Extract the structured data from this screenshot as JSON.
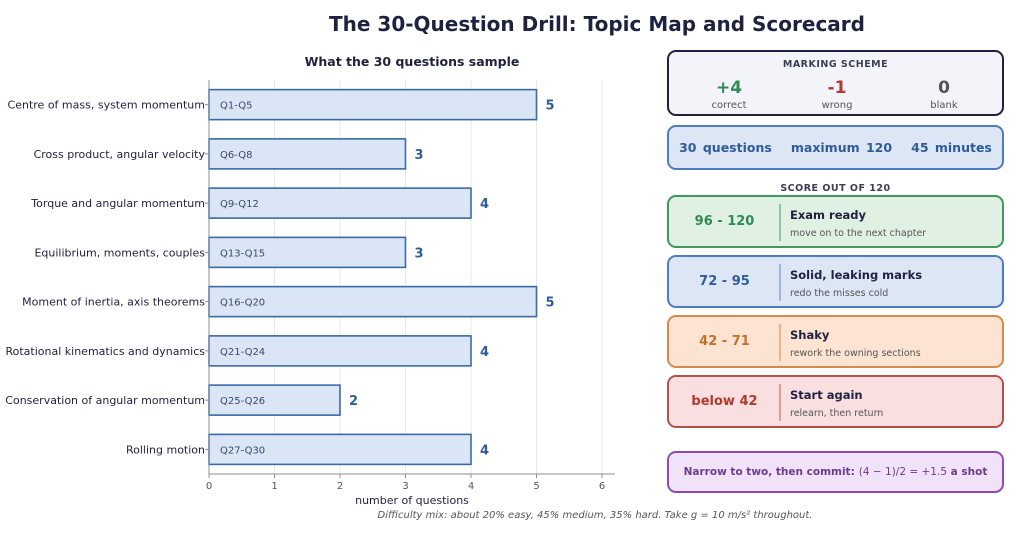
{
  "title": "The 30-Question Drill: Topic Map and Scorecard",
  "chart_data": {
    "type": "bar",
    "orientation": "horizontal",
    "title": "What the 30 questions sample",
    "xlabel": "number of questions",
    "ylabel": "",
    "xlim": [
      0,
      6.2
    ],
    "xticks": [
      0,
      1,
      2,
      3,
      4,
      5,
      6
    ],
    "grid": "vertical",
    "bar_color": "#dae6f6",
    "bar_edge": "#3a6aa6",
    "categories": [
      "Centre of mass, system momentum",
      "Cross product, angular velocity",
      "Torque and angular momentum",
      "Equilibrium, moments, couples",
      "Moment of inertia, axis theorems",
      "Rotational kinematics and dynamics",
      "Conservation of angular momentum",
      "Rolling motion"
    ],
    "question_ranges": [
      "Q1-Q5",
      "Q6-Q8",
      "Q9-Q12",
      "Q13-Q15",
      "Q16-Q20",
      "Q21-Q24",
      "Q25-Q26",
      "Q27-Q30"
    ],
    "values": [
      5,
      3,
      4,
      3,
      5,
      4,
      2,
      4
    ]
  },
  "marking_scheme": {
    "header": "MARKING SCHEME",
    "items": [
      {
        "value": "+4",
        "label": "correct",
        "color": "#2e8b57"
      },
      {
        "value": "-1",
        "label": "wrong",
        "color": "#b03a2e"
      },
      {
        "value": "0",
        "label": "blank",
        "color": "#555555"
      }
    ]
  },
  "info_bar": "30 questions   maximum 120   45 minutes",
  "score_header": "SCORE OUT OF 120",
  "bands": [
    {
      "range": "96 - 120",
      "title": "Exam ready",
      "sub": "move on to the next chapter",
      "color": "#2e8b57",
      "bg": "#e0f0e2",
      "border": "#3d9a5c",
      "divider": "#8cc79e"
    },
    {
      "range": "72 - 95",
      "title": "Solid, leaking marks",
      "sub": "redo the misses cold",
      "color": "#2f5c9a",
      "bg": "#dde6f5",
      "border": "#4f7cc0",
      "divider": "#9bb5dc"
    },
    {
      "range": "42 - 71",
      "title": "Shaky",
      "sub": "rework the owning sections",
      "color": "#c0702a",
      "bg": "#fde4d2",
      "border": "#d58a4a",
      "divider": "#eeb08c"
    },
    {
      "range": "below 42",
      "title": "Start again",
      "sub": "relearn, then return",
      "color": "#b03a2e",
      "bg": "#fadfe0",
      "border": "#b8504a",
      "divider": "#e29a98"
    }
  ],
  "tip": {
    "label": "Narrow to two, then commit:",
    "formula": "(4 − 1)/2 = +1.5",
    "suffix": "a shot"
  },
  "footer": "Difficulty mix: about 20% easy, 45% medium, 35% hard. Take g = 10 m/s² throughout."
}
